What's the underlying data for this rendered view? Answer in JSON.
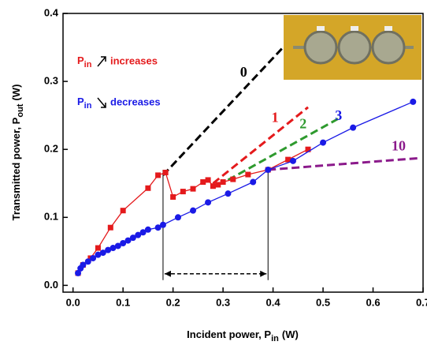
{
  "chart_data": {
    "type": "line",
    "x_label": {
      "text": "Incident power, P",
      "sub": "in",
      "end": "(W)"
    },
    "y_label": {
      "text": "Transmitted power, P",
      "sub": "out",
      "end": "(W)"
    },
    "xlim": [
      -0.02,
      0.7
    ],
    "ylim": [
      -0.01,
      0.4
    ],
    "xticks": [
      {
        "value": 0,
        "label": "0.0"
      },
      0.1,
      0.2,
      0.3,
      0.4,
      0.5,
      0.6,
      0.7
    ],
    "yticks": [
      {
        "value": 0,
        "label": "0.0"
      },
      0.1,
      0.2,
      0.3,
      0.4
    ],
    "legend_symbol": {
      "text": "P",
      "sub": "in"
    },
    "series": [
      {
        "name": "increases",
        "color": "#e41a1c",
        "marker": "square",
        "x": [
          0.01,
          0.02,
          0.035,
          0.05,
          0.075,
          0.1,
          0.15,
          0.17,
          0.185,
          0.2,
          0.22,
          0.24,
          0.26,
          0.27,
          0.28,
          0.29,
          0.3,
          0.32,
          0.35,
          0.39,
          0.43,
          0.47
        ],
        "values": [
          0.018,
          0.03,
          0.04,
          0.055,
          0.085,
          0.11,
          0.143,
          0.162,
          0.166,
          0.13,
          0.138,
          0.142,
          0.152,
          0.155,
          0.146,
          0.148,
          0.152,
          0.156,
          0.163,
          0.17,
          0.185,
          0.2
        ]
      },
      {
        "name": "decreases",
        "color": "#1a1ae6",
        "marker": "circle",
        "x": [
          0.01,
          0.015,
          0.02,
          0.03,
          0.04,
          0.05,
          0.06,
          0.07,
          0.08,
          0.09,
          0.1,
          0.11,
          0.12,
          0.13,
          0.14,
          0.15,
          0.17,
          0.18,
          0.21,
          0.24,
          0.27,
          0.31,
          0.36,
          0.39,
          0.44,
          0.5,
          0.56,
          0.68
        ],
        "values": [
          0.018,
          0.025,
          0.03,
          0.035,
          0.04,
          0.045,
          0.048,
          0.052,
          0.055,
          0.058,
          0.062,
          0.066,
          0.07,
          0.074,
          0.078,
          0.082,
          0.085,
          0.089,
          0.1,
          0.11,
          0.122,
          0.135,
          0.152,
          0.17,
          0.183,
          0.21,
          0.232,
          0.27
        ]
      }
    ],
    "fits": [
      {
        "label": "0",
        "color": "#000000",
        "x": [
          0.18,
          0.42
        ],
        "values": [
          0.162,
          0.35
        ],
        "label_x": 0.334,
        "label_y": 0.312
      },
      {
        "label": "1",
        "color": "#e41a1c",
        "x": [
          0.28,
          0.47
        ],
        "values": [
          0.15,
          0.262
        ],
        "label_x": 0.397,
        "label_y": 0.245
      },
      {
        "label": "2",
        "color": "#2e9a2e",
        "x": [
          0.31,
          0.53
        ],
        "values": [
          0.155,
          0.245
        ],
        "label_x": 0.453,
        "label_y": 0.236
      },
      {
        "label": "3",
        "color": "#1a1ae6",
        "x": [],
        "values": [],
        "label_x": 0.524,
        "label_y": 0.248
      },
      {
        "label": "10",
        "color": "#8b1a8b",
        "x": [
          0.39,
          0.69
        ],
        "values": [
          0.17,
          0.187
        ],
        "label_x": 0.637,
        "label_y": 0.203
      }
    ],
    "range_marker": {
      "x": [
        0.18,
        0.39
      ],
      "y": 0.017
    }
  }
}
